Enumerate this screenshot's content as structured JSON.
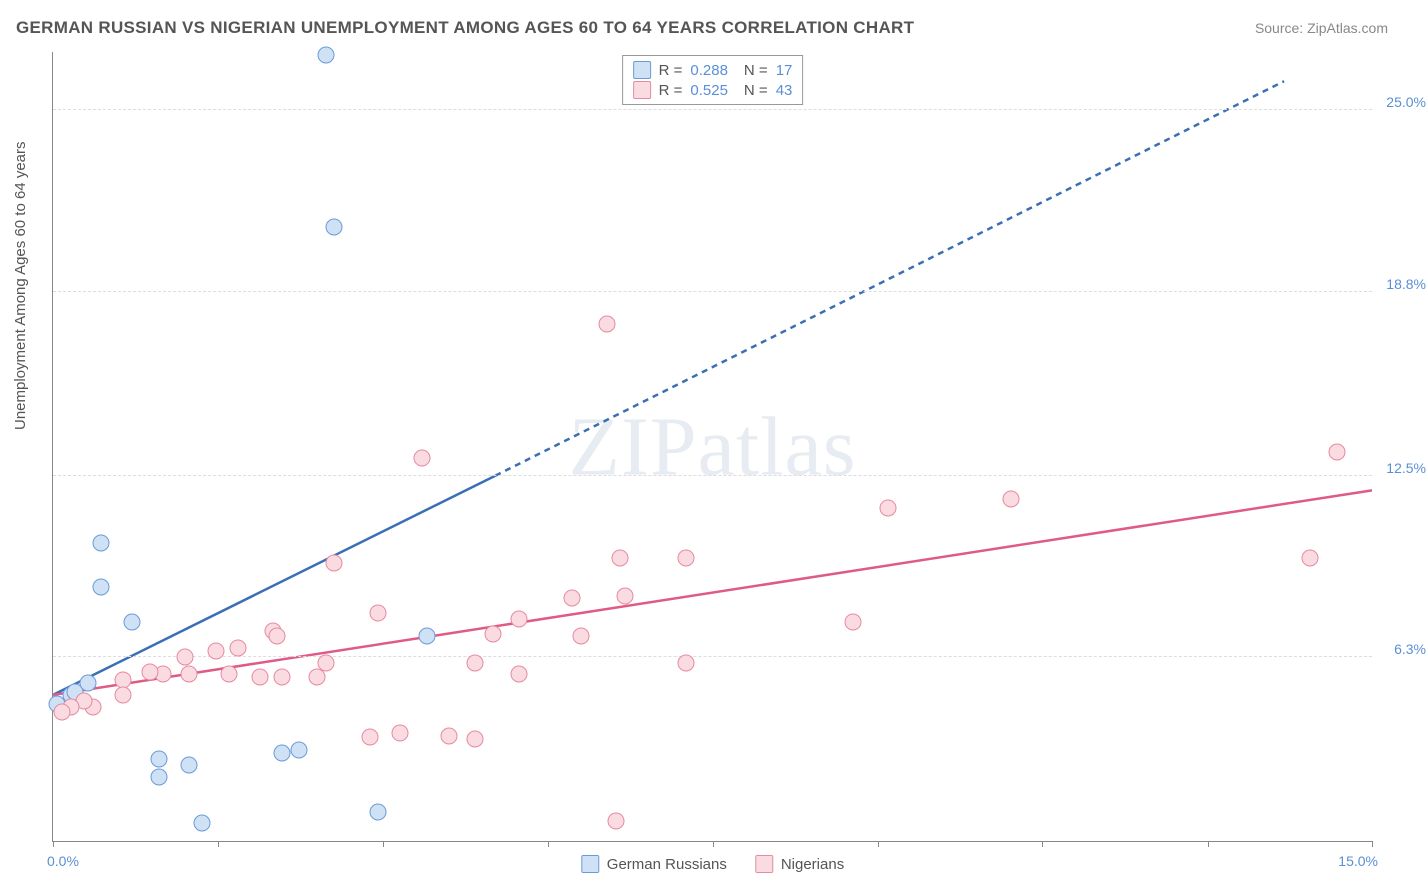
{
  "title": "GERMAN RUSSIAN VS NIGERIAN UNEMPLOYMENT AMONG AGES 60 TO 64 YEARS CORRELATION CHART",
  "source": "Source: ZipAtlas.com",
  "watermark_a": "ZIP",
  "watermark_b": "atlas",
  "yaxis_title": "Unemployment Among Ages 60 to 64 years",
  "chart": {
    "type": "scatter-correlation",
    "background_color": "#ffffff",
    "grid_color": "#dddddd",
    "axis_color": "#888888",
    "tick_label_color": "#5a8fd6",
    "tick_fontsize": 14,
    "title_color": "#555555",
    "title_fontsize": 17,
    "x": {
      "min": 0.0,
      "max": 15.0,
      "ticks": [
        0.0,
        1.88,
        3.75,
        5.63,
        7.5,
        9.38,
        11.25,
        13.13,
        15.0
      ],
      "min_label": "0.0%",
      "max_label": "15.0%"
    },
    "y": {
      "min": 0.0,
      "max": 27.0,
      "ticks": [
        6.3,
        12.5,
        18.8,
        25.0
      ],
      "tick_labels": [
        "6.3%",
        "12.5%",
        "18.8%",
        "25.0%"
      ]
    },
    "marker_radius": 8.5,
    "marker_border_width": 1.5,
    "series": [
      {
        "key": "german_russians",
        "label": "German Russians",
        "fill": "#cfe1f5",
        "stroke": "#6a9bd8",
        "line_color": "#3b6fb5",
        "line_width": 2.5,
        "dash_extrapolate": "6 5",
        "R": "0.288",
        "N": "17",
        "regression": {
          "x1": 0.0,
          "y1": 5.0,
          "solid_x2": 5.03,
          "solid_y2": 12.5,
          "x2": 14.0,
          "y2": 26.0
        },
        "points": [
          {
            "x": 3.1,
            "y": 26.9
          },
          {
            "x": 3.2,
            "y": 21.0
          },
          {
            "x": 0.55,
            "y": 10.2
          },
          {
            "x": 0.55,
            "y": 8.7
          },
          {
            "x": 0.9,
            "y": 7.5
          },
          {
            "x": 0.2,
            "y": 5.0
          },
          {
            "x": 0.25,
            "y": 5.1
          },
          {
            "x": 0.4,
            "y": 5.4
          },
          {
            "x": 0.05,
            "y": 4.7
          },
          {
            "x": 1.2,
            "y": 2.8
          },
          {
            "x": 1.2,
            "y": 2.2
          },
          {
            "x": 1.55,
            "y": 2.6
          },
          {
            "x": 2.6,
            "y": 3.0
          },
          {
            "x": 2.8,
            "y": 3.1
          },
          {
            "x": 1.7,
            "y": 0.6
          },
          {
            "x": 3.7,
            "y": 1.0
          },
          {
            "x": 4.25,
            "y": 7.0
          }
        ]
      },
      {
        "key": "nigerians",
        "label": "Nigerians",
        "fill": "#fadbe1",
        "stroke": "#e68aa0",
        "line_color": "#e05a88",
        "line_width": 2.5,
        "dash_extrapolate": "",
        "R": "0.525",
        "N": "43",
        "regression": {
          "x1": 0.0,
          "y1": 5.0,
          "solid_x2": 15.0,
          "solid_y2": 12.0,
          "x2": 15.0,
          "y2": 12.0
        },
        "points": [
          {
            "x": 6.3,
            "y": 17.7
          },
          {
            "x": 4.2,
            "y": 13.1
          },
          {
            "x": 14.6,
            "y": 13.3
          },
          {
            "x": 14.3,
            "y": 9.7
          },
          {
            "x": 10.9,
            "y": 11.7
          },
          {
            "x": 9.5,
            "y": 11.4
          },
          {
            "x": 9.1,
            "y": 7.5
          },
          {
            "x": 7.2,
            "y": 6.1
          },
          {
            "x": 7.2,
            "y": 9.7
          },
          {
            "x": 6.5,
            "y": 8.4
          },
          {
            "x": 6.45,
            "y": 9.7
          },
          {
            "x": 6.0,
            "y": 7.0
          },
          {
            "x": 5.9,
            "y": 8.3
          },
          {
            "x": 5.3,
            "y": 7.6
          },
          {
            "x": 5.3,
            "y": 5.7
          },
          {
            "x": 5.0,
            "y": 7.1
          },
          {
            "x": 4.8,
            "y": 3.5
          },
          {
            "x": 4.8,
            "y": 6.1
          },
          {
            "x": 4.5,
            "y": 3.6
          },
          {
            "x": 3.95,
            "y": 3.7
          },
          {
            "x": 3.7,
            "y": 7.8
          },
          {
            "x": 3.1,
            "y": 6.1
          },
          {
            "x": 2.5,
            "y": 7.2
          },
          {
            "x": 2.6,
            "y": 5.6
          },
          {
            "x": 3.2,
            "y": 9.5
          },
          {
            "x": 3.0,
            "y": 5.6
          },
          {
            "x": 2.35,
            "y": 5.6
          },
          {
            "x": 2.55,
            "y": 7.0
          },
          {
            "x": 2.1,
            "y": 6.6
          },
          {
            "x": 2.0,
            "y": 5.7
          },
          {
            "x": 1.85,
            "y": 6.5
          },
          {
            "x": 1.55,
            "y": 5.7
          },
          {
            "x": 1.5,
            "y": 6.3
          },
          {
            "x": 1.25,
            "y": 5.7
          },
          {
            "x": 1.1,
            "y": 5.8
          },
          {
            "x": 0.8,
            "y": 5.5
          },
          {
            "x": 0.8,
            "y": 5.0
          },
          {
            "x": 0.45,
            "y": 4.6
          },
          {
            "x": 0.35,
            "y": 4.8
          },
          {
            "x": 0.2,
            "y": 4.6
          },
          {
            "x": 0.1,
            "y": 4.4
          },
          {
            "x": 6.4,
            "y": 0.7
          },
          {
            "x": 3.6,
            "y": 3.55
          }
        ]
      }
    ]
  }
}
